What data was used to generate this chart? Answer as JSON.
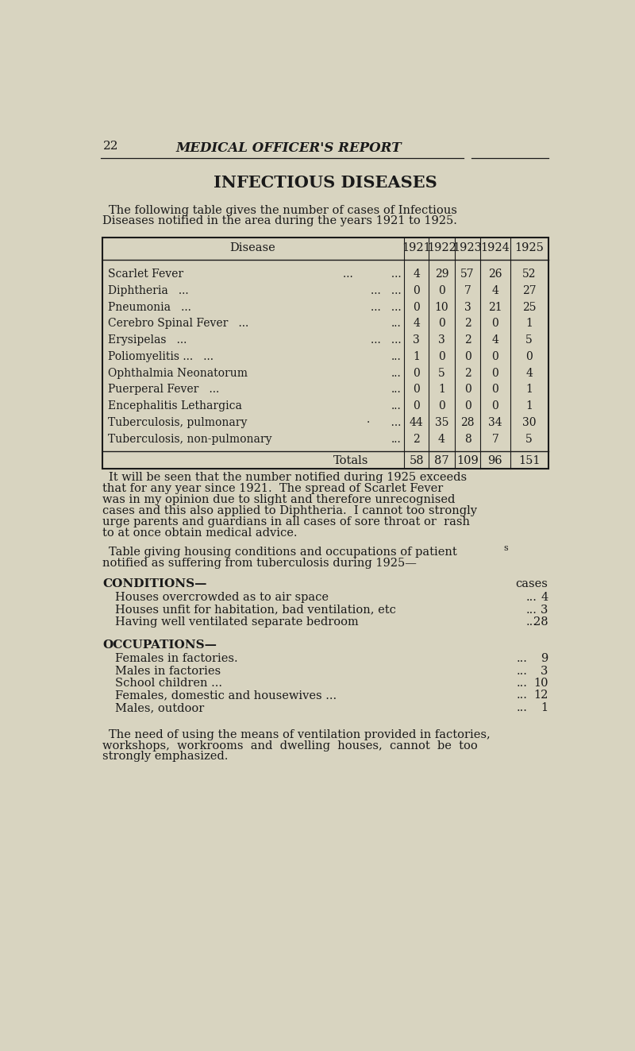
{
  "bg_color": "#d8d4c0",
  "page_num": "22",
  "header": "MEDICAL OFFICER'S REPORT",
  "section_title": "INFECTIOUS DISEASES",
  "intro_text": [
    "The following table gives the number of cases of Infectious",
    "Diseases notified in the area during the years 1921 to 1925."
  ],
  "disease_names": [
    "Scarlet Fever",
    "Diphtheria   ...",
    "Pneumonia   ...",
    "Cerebro Spinal Fever   ...",
    "Erysipelas   ...",
    "Poliomyelitis ...   ...",
    "Ophthalmia Neonatorum",
    "Puerperal Fever   ...",
    "Encephalitis Lethargica",
    "Tuberculosis, pulmonary",
    "Tuberculosis, non-pulmonary"
  ],
  "disease_dots": [
    "...           ...",
    "...   ...",
    "...   ...",
    "...",
    "...   ...",
    "...",
    "...",
    "...",
    "...",
    "·      ...",
    "..."
  ],
  "data_matrix": [
    [
      4,
      29,
      57,
      26,
      52
    ],
    [
      0,
      0,
      7,
      4,
      27
    ],
    [
      0,
      10,
      3,
      21,
      25
    ],
    [
      4,
      0,
      2,
      0,
      1
    ],
    [
      3,
      3,
      2,
      4,
      5
    ],
    [
      1,
      0,
      0,
      0,
      0
    ],
    [
      0,
      5,
      2,
      0,
      4
    ],
    [
      0,
      1,
      0,
      0,
      1
    ],
    [
      0,
      0,
      0,
      0,
      1
    ],
    [
      44,
      35,
      28,
      34,
      30
    ],
    [
      2,
      4,
      8,
      7,
      5
    ]
  ],
  "totals": [
    58,
    87,
    109,
    96,
    151
  ],
  "paragraph1": [
    "It will be seen that the number notified during 1925 exceeds",
    "that for any year since 1921.  The spread of Scarlet Fever",
    "was in my opinion due to slight and therefore unrecognised",
    "cases and this also applied to Diphtheria.  I cannot too strongly",
    "urge parents and guardians in all cases of sore throat or  rash",
    "to at once obtain medical advice."
  ],
  "conditions_header": "CONDITIONS—",
  "cases_label": "cases",
  "conditions_items": [
    "Houses overcrowded as to air space",
    "Houses unfit for habitation, bad ventilation, etc",
    "Having well ventilated separate bedroom"
  ],
  "conditions_values": [
    4,
    3,
    28
  ],
  "occupations_header": "OCCUPATIONS—",
  "occupations_items": [
    "Females in factories.",
    "Males in factories",
    "School children ...",
    "Females, domestic and housewives ...",
    "Males, outdoor"
  ],
  "occupations_values": [
    9,
    3,
    10,
    12,
    1
  ],
  "paragraph3": [
    "The need of using the means of ventilation provided in factories,",
    "workshops,  workrooms  and  dwelling  houses,  cannot  be  too",
    "strongly emphasized."
  ]
}
